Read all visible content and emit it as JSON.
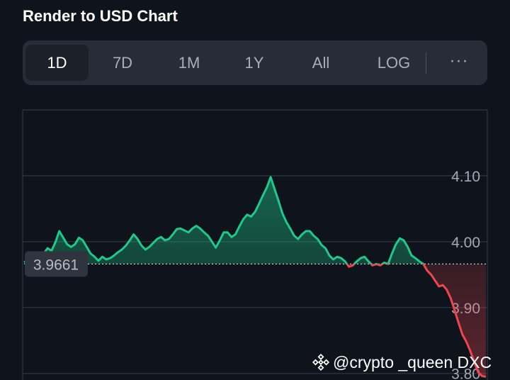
{
  "page": {
    "title": "Render to USD Chart"
  },
  "tabs": [
    {
      "label": "1D",
      "active": true
    },
    {
      "label": "7D",
      "active": false
    },
    {
      "label": "1M",
      "active": false
    },
    {
      "label": "1Y",
      "active": false
    },
    {
      "label": "All",
      "active": false
    },
    {
      "label": "LOG",
      "active": false
    }
  ],
  "more_label": "···",
  "watermark": {
    "text": "@crypto _queen DXC",
    "icon": "binance-logo-icon"
  },
  "colors": {
    "background": "#0f141c",
    "up": "#1ec98a",
    "down": "#f0454f",
    "grid": "#2a303a",
    "label": "#a4a9b3"
  },
  "chart_data": {
    "type": "area",
    "reference": {
      "value": 3.9661,
      "label": "3.9661",
      "style": "dotted"
    },
    "ylim": [
      3.79,
      4.2
    ],
    "yticks": [
      {
        "value": 4.1,
        "label": "4.10"
      },
      {
        "value": 4.0,
        "label": "4.00"
      },
      {
        "value": 3.9,
        "label": "3.90"
      },
      {
        "value": 3.8,
        "label": "3.80"
      }
    ],
    "grid": true,
    "x_axis_labels": false,
    "series": [
      {
        "values": [
          3.969,
          3.971,
          3.972,
          3.97,
          3.975,
          3.982,
          3.99,
          3.986,
          3.999,
          4.016,
          4.006,
          3.996,
          3.992,
          3.996,
          4.006,
          4.002,
          3.992,
          3.982,
          3.977,
          3.971,
          3.977,
          3.973,
          3.975,
          3.979,
          3.984,
          3.988,
          3.994,
          4.002,
          4.011,
          4.004,
          3.994,
          3.988,
          3.992,
          3.998,
          4.004,
          4.007,
          4.002,
          4.004,
          4.011,
          4.019,
          4.02,
          4.017,
          4.014,
          4.02,
          4.024,
          4.02,
          4.014,
          4.009,
          4.0,
          3.991,
          4.002,
          4.014,
          4.014,
          4.007,
          4.011,
          4.023,
          4.034,
          4.041,
          4.038,
          4.045,
          4.057,
          4.07,
          4.082,
          4.098,
          4.08,
          4.062,
          4.043,
          4.03,
          4.02,
          4.009,
          4.004,
          4.011,
          4.016,
          4.016,
          4.009,
          4.004,
          3.995,
          3.99,
          3.979,
          3.973,
          3.977,
          3.975,
          3.97,
          3.962,
          3.964,
          3.97,
          3.975,
          3.977,
          3.97,
          3.964,
          3.966,
          3.964,
          3.968,
          3.966,
          3.982,
          3.996,
          4.005,
          4.002,
          3.992,
          3.979,
          3.975,
          3.97,
          3.966,
          3.956,
          3.95,
          3.941,
          3.932,
          3.934,
          3.927,
          3.914,
          3.896,
          3.877,
          3.859,
          3.848,
          3.834,
          3.818,
          3.802,
          3.796,
          3.795
        ]
      }
    ]
  }
}
